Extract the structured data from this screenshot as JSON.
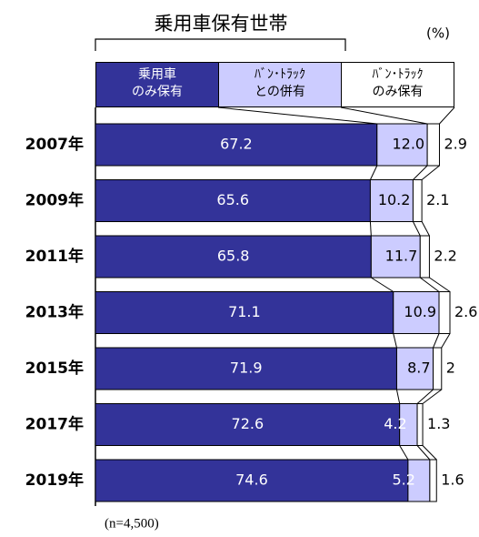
{
  "chart_data": {
    "type": "bar",
    "orientation": "horizontal",
    "stacked": true,
    "title": "乗用車保有世帯",
    "unit_label": "(%)",
    "note": "(n=4,500)",
    "categories": [
      "2007年",
      "2009年",
      "2011年",
      "2013年",
      "2015年",
      "2017年",
      "2019年"
    ],
    "series": [
      {
        "name": "乗用車\nのみ保有",
        "color": "#333399",
        "values": [
          67.2,
          65.6,
          65.8,
          71.1,
          71.9,
          72.6,
          74.6
        ]
      },
      {
        "name": "ﾊﾞﾝ･ﾄﾗｯｸ\nとの併有",
        "color": "#ccccff",
        "values": [
          12.0,
          10.2,
          11.7,
          10.9,
          8.7,
          4.2,
          5.2
        ],
        "value_labels": [
          "12.0",
          "10.2",
          "11.7",
          "10.9",
          "8.7",
          "4.2",
          "5.2"
        ]
      },
      {
        "name": "ﾊﾞﾝ･ﾄﾗｯｸ\nのみ保有",
        "color": "#ffffff",
        "values": [
          2.9,
          2.1,
          2.2,
          2.6,
          2.0,
          1.3,
          1.6
        ]
      }
    ]
  }
}
